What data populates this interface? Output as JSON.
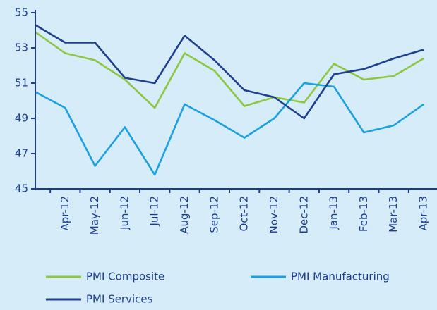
{
  "chart_data": {
    "type": "line",
    "categories": [
      null,
      "Apr-12",
      "May-12",
      "Jun-12",
      "Jul-12",
      "Aug-12",
      "Sep-12",
      "Oct-12",
      "Nov-12",
      "Dec-12",
      "Jan-13",
      "Feb-13",
      "Mar-13",
      "Apr-13"
    ],
    "series": [
      {
        "name": "PMI Composite",
        "color": "#8dc641",
        "values": [
          53.9,
          52.7,
          52.3,
          51.2,
          49.6,
          52.7,
          51.7,
          49.7,
          50.2,
          49.9,
          52.1,
          51.2,
          51.4,
          52.4
        ]
      },
      {
        "name": "PMI Manufacturing",
        "color": "#1ba1e2",
        "values": [
          50.5,
          49.6,
          46.3,
          48.5,
          45.8,
          49.8,
          48.9,
          47.9,
          49.0,
          51.0,
          50.8,
          48.2,
          48.6,
          49.8
        ]
      },
      {
        "name": "PMI Services",
        "color": "#1f3f8f",
        "values": [
          54.3,
          53.3,
          53.3,
          51.3,
          51.0,
          53.7,
          52.3,
          50.6,
          50.2,
          49.0,
          51.5,
          51.8,
          52.4,
          52.9
        ]
      }
    ],
    "ylim": [
      45,
      55
    ],
    "yticks": [
      45,
      47,
      49,
      51,
      53,
      55
    ],
    "grid": false
  }
}
